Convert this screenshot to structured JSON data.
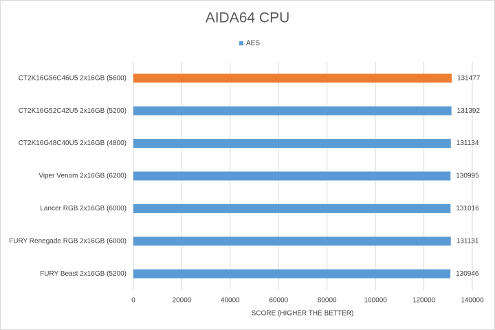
{
  "chart_data": {
    "type": "bar",
    "orientation": "horizontal",
    "title": "AIDA64 CPU",
    "x_label": "SCORE (HIGHER THE BETTER)",
    "categories": [
      "CT2K16G56C46U5 2x16GB (5600)",
      "CT2K16G52C42U5 2x16GB (5200)",
      "CT2K16G48C40U5 2x16GB (4800)",
      "Viper Venom 2x16GB (6200)",
      "Lancer RGB 2x16GB (6000)",
      "FURY Renegade RGB 2x16GB (6000)",
      "FURY Beast 2x16GB (5200)"
    ],
    "series": [
      {
        "name": "AES",
        "color": "#5b9bd5",
        "point_colors": [
          "#ed7d31",
          "#5b9bd5",
          "#5b9bd5",
          "#5b9bd5",
          "#5b9bd5",
          "#5b9bd5",
          "#5b9bd5"
        ],
        "values": [
          131477,
          131392,
          131134,
          130995,
          131016,
          131131,
          130946
        ]
      }
    ],
    "xlim": [
      0,
      140000
    ],
    "xticks": [
      0,
      20000,
      40000,
      60000,
      80000,
      100000,
      120000,
      140000
    ],
    "grid": true,
    "legend": "top"
  }
}
